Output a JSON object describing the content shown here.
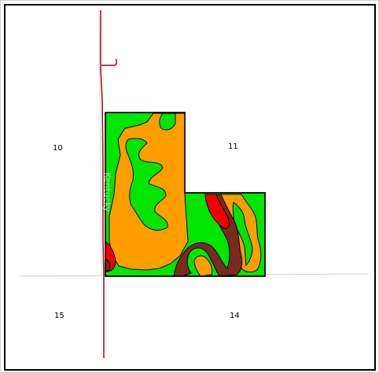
{
  "map": {
    "section_labels": {
      "nw": "10",
      "ne": "11",
      "sw": "15",
      "se": "14"
    },
    "road_label": "Kentucky",
    "legend_colors": {
      "green": "#00e600",
      "orange": "#ff9e00",
      "brown": "#7a2a1e",
      "red": "#ee0000",
      "road": "#b40000",
      "section_line": "#cfcfcf"
    }
  }
}
